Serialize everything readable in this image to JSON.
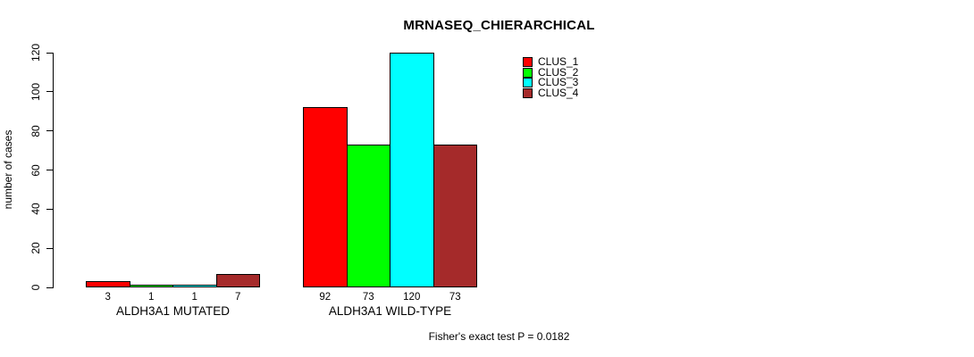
{
  "chart_data": {
    "type": "bar",
    "title": "MRNASEQ_CHIERARCHICAL",
    "ylabel": "number of cases",
    "xlabel": "",
    "ylim": [
      0,
      120
    ],
    "yticks": [
      0,
      20,
      40,
      60,
      80,
      100,
      120
    ],
    "categories": [
      "ALDH3A1 MUTATED",
      "ALDH3A1 WILD-TYPE"
    ],
    "series": [
      {
        "name": "CLUS_1",
        "color": "#ff0000",
        "values": [
          3,
          92
        ]
      },
      {
        "name": "CLUS_2",
        "color": "#00ff00",
        "values": [
          1,
          73
        ]
      },
      {
        "name": "CLUS_3",
        "color": "#00ffff",
        "values": [
          1,
          120
        ]
      },
      {
        "name": "CLUS_4",
        "color": "#a52a2a",
        "values": [
          7,
          73
        ]
      }
    ],
    "bar_value_labels": [
      [
        "3",
        "1",
        "1",
        "7"
      ],
      [
        "92",
        "73",
        "120",
        "73"
      ]
    ],
    "legend": {
      "position": "top-right",
      "entries": [
        "CLUS_1",
        "CLUS_2",
        "CLUS_3",
        "CLUS_4"
      ]
    },
    "grid": false,
    "annotation": "Fisher's exact test P = 0.0182",
    "colors": {
      "axis": "#000000",
      "text": "#000000",
      "background": "#ffffff"
    }
  }
}
